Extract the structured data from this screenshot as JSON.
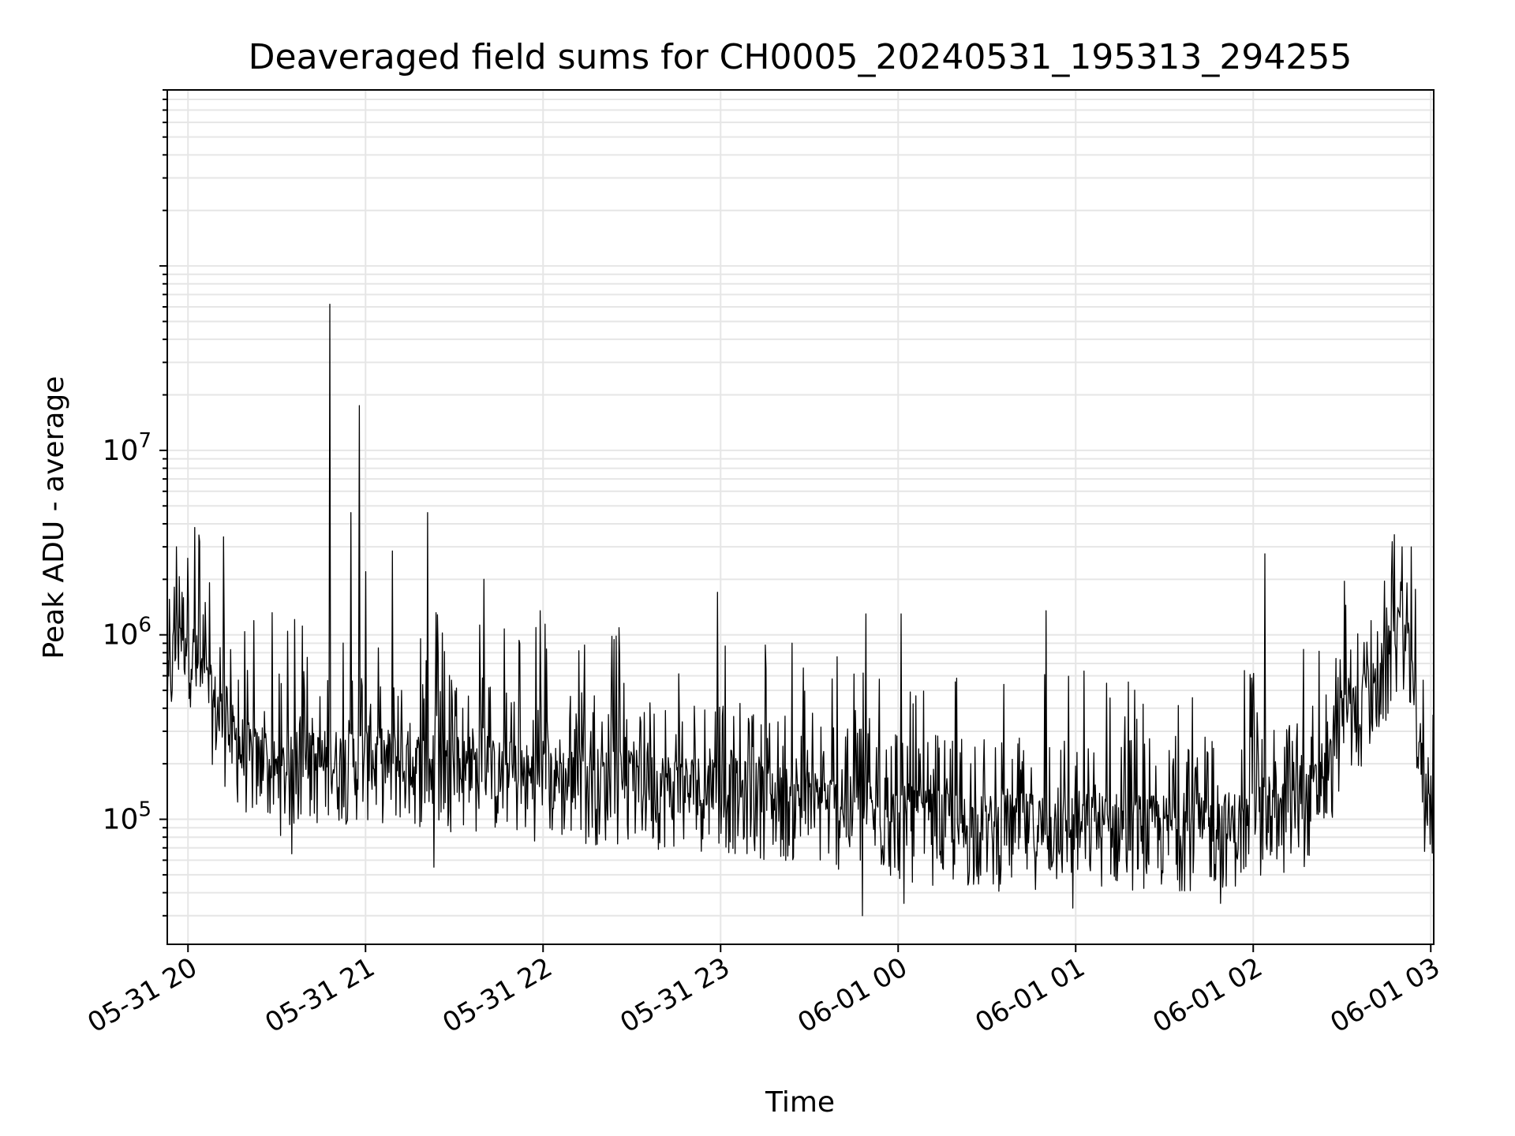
{
  "chart_data": {
    "type": "line",
    "title": "Deaveraged field sums for CH0005_20240531_195313_294255",
    "xlabel": "Time",
    "ylabel": "Peak ADU - average",
    "yscale": "log",
    "ylim": [
      21000,
      900000000
    ],
    "xlim": [
      "2024-05-31 19:53",
      "2024-06-01 03:01"
    ],
    "grid": true,
    "line_color": "#000000",
    "grid_color": "#e6e6e6",
    "x_ticks": [
      {
        "value": "2024-05-31 20:00",
        "label": "05-31 20"
      },
      {
        "value": "2024-05-31 21:00",
        "label": "05-31 21"
      },
      {
        "value": "2024-05-31 22:00",
        "label": "05-31 22"
      },
      {
        "value": "2024-05-31 23:00",
        "label": "05-31 23"
      },
      {
        "value": "2024-06-01 00:00",
        "label": "06-01 00"
      },
      {
        "value": "2024-06-01 01:00",
        "label": "06-01 01"
      },
      {
        "value": "2024-06-01 02:00",
        "label": "06-01 02"
      },
      {
        "value": "2024-06-01 03:00",
        "label": "06-01 03"
      }
    ],
    "y_ticks": [
      {
        "value": 100000,
        "base": "10",
        "exp": "5"
      },
      {
        "value": 1000000,
        "base": "10",
        "exp": "6"
      },
      {
        "value": 10000000,
        "base": "10",
        "exp": "7"
      }
    ],
    "series": [
      {
        "points": [
          [
            "2024-05-31 19:53",
            400000
          ],
          [
            "2024-05-31 19:55",
            700000
          ],
          [
            "2024-05-31 19:58",
            1100000
          ],
          [
            "2024-05-31 20:00",
            900000
          ],
          [
            "2024-05-31 20:03",
            600000
          ],
          [
            "2024-05-31 20:06",
            450000
          ],
          [
            "2024-05-31 20:10",
            350000
          ],
          [
            "2024-05-31 20:15",
            250000
          ],
          [
            "2024-05-31 20:20",
            200000
          ],
          [
            "2024-05-31 20:30",
            160000
          ],
          [
            "2024-05-31 20:45",
            180000
          ],
          [
            "2024-05-31 21:00",
            190000
          ],
          [
            "2024-05-31 21:30",
            170000
          ],
          [
            "2024-05-31 22:00",
            150000
          ],
          [
            "2024-05-31 22:30",
            140000
          ],
          [
            "2024-05-31 23:00",
            130000
          ],
          [
            "2024-05-31 23:30",
            110000
          ],
          [
            "2024-06-01 00:00",
            90000
          ],
          [
            "2024-06-01 00:30",
            80000
          ],
          [
            "2024-06-01 01:00",
            85000
          ],
          [
            "2024-06-01 01:30",
            80000
          ],
          [
            "2024-06-01 02:00",
            85000
          ],
          [
            "2024-06-01 02:15",
            100000
          ],
          [
            "2024-06-01 02:25",
            150000
          ],
          [
            "2024-06-01 02:30",
            300000
          ],
          [
            "2024-06-01 02:40",
            400000
          ],
          [
            "2024-06-01 02:48",
            800000
          ],
          [
            "2024-06-01 02:50",
            1200000
          ],
          [
            "2024-06-01 02:53",
            600000
          ],
          [
            "2024-06-01 02:55",
            250000
          ],
          [
            "2024-06-01 02:58",
            160000
          ],
          [
            "2024-06-01 03:01",
            110000
          ]
        ],
        "spikes": [
          [
            "2024-05-31 19:56",
            3000000
          ],
          [
            "2024-05-31 20:00",
            2600000
          ],
          [
            "2024-05-31 20:04",
            3200000
          ],
          [
            "2024-05-31 20:12",
            3400000
          ],
          [
            "2024-05-31 20:48",
            62000000
          ],
          [
            "2024-05-31 20:55",
            4600000
          ],
          [
            "2024-05-31 20:58",
            17500000
          ],
          [
            "2024-05-31 21:00",
            2200000
          ],
          [
            "2024-05-31 21:09",
            2850000
          ],
          [
            "2024-05-31 21:21",
            4600000
          ],
          [
            "2024-05-31 21:40",
            2000000
          ],
          [
            "2024-05-31 21:59",
            1350000
          ],
          [
            "2024-05-31 22:59",
            1700000
          ],
          [
            "2024-05-31 23:49",
            1300000
          ],
          [
            "2024-06-01 00:01",
            1300000
          ],
          [
            "2024-06-01 00:50",
            1350000
          ],
          [
            "2024-06-01 02:04",
            2750000
          ],
          [
            "2024-06-01 02:49",
            1350000
          ]
        ],
        "dips": [
          [
            "2024-05-31 20:35",
            65000
          ],
          [
            "2024-05-31 21:23",
            55000
          ],
          [
            "2024-05-31 23:48",
            30000
          ],
          [
            "2024-06-01 00:02",
            35000
          ],
          [
            "2024-06-01 00:59",
            33000
          ],
          [
            "2024-06-01 01:49",
            35000
          ],
          [
            "2024-06-01 02:58",
            67000
          ]
        ]
      }
    ]
  }
}
